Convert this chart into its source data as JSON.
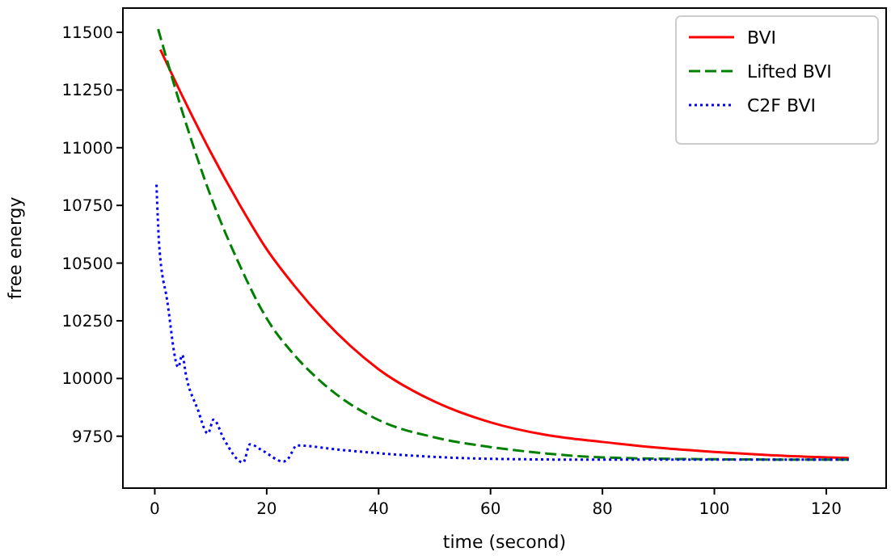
{
  "chart_data": {
    "type": "line",
    "xlabel": "time (second)",
    "ylabel": "free energy",
    "xlim": [
      -5.7,
      130.7
    ],
    "ylim": [
      9525,
      11605
    ],
    "xticks": [
      0,
      20,
      40,
      60,
      80,
      100,
      120
    ],
    "yticks": [
      9750,
      10000,
      10250,
      10500,
      10750,
      11000,
      11250,
      11500
    ],
    "grid": false,
    "legend": "top right",
    "series": [
      {
        "name": "BVI",
        "color": "#ff0000",
        "line_style": "solid",
        "x": [
          1,
          5,
          10,
          15,
          20,
          25,
          30,
          40,
          50,
          60,
          70,
          80,
          90,
          100,
          110,
          124
        ],
        "values": [
          11425,
          11220,
          10980,
          10760,
          10560,
          10400,
          10260,
          10040,
          9900,
          9810,
          9755,
          9725,
          9700,
          9682,
          9668,
          9655
        ]
      },
      {
        "name": "Lifted BVI",
        "color": "#008000",
        "line_style": "dashed",
        "x": [
          0.6,
          5,
          10,
          15,
          20,
          25,
          30,
          40,
          50,
          60,
          70,
          80,
          100,
          124
        ],
        "values": [
          11514,
          11150,
          10790,
          10500,
          10260,
          10100,
          9980,
          9820,
          9745,
          9703,
          9675,
          9658,
          9650,
          9648
        ]
      },
      {
        "name": "C2F BVI",
        "color": "#0000ff",
        "line_style": "dotted",
        "x": [
          0.3,
          0.8,
          2.2,
          4.2,
          4.9,
          5.6,
          7.6,
          9.5,
          10.5,
          12.4,
          15.8,
          17,
          19.3,
          23,
          23.8,
          25.4,
          32.7,
          47.2,
          60,
          80,
          124
        ],
        "values": [
          10840,
          10574,
          10340,
          10049,
          10102,
          10011,
          9871,
          9762,
          9822,
          9735,
          9636,
          9715,
          9687,
          9640,
          9652,
          9710,
          9692,
          9664,
          9652,
          9648,
          9648
        ]
      }
    ]
  }
}
